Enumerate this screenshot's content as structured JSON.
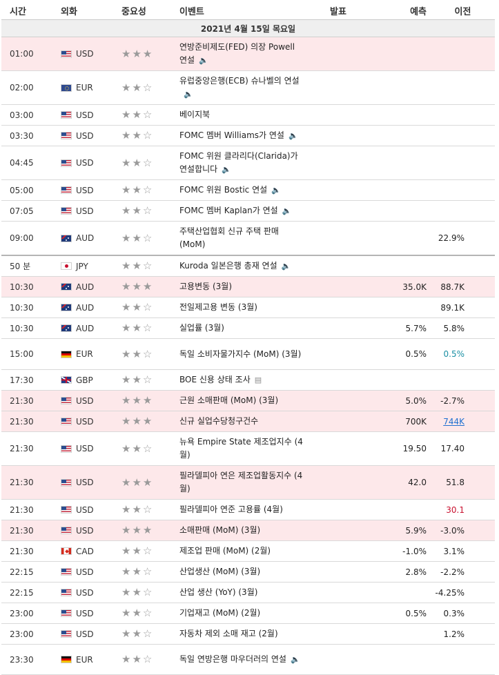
{
  "headers": {
    "time": "시간",
    "currency": "외화",
    "importance": "중요성",
    "event": "이벤트",
    "actual": "발표",
    "forecast": "예측",
    "previous": "이전"
  },
  "date_label": "2021년 4월 15일 목요일",
  "icons": {
    "speaker": "speaker-icon",
    "document": "document-icon",
    "star": "star-icon"
  },
  "colors": {
    "highlight_row": "#fde8ea",
    "teal_value": "#1a8fa3",
    "link_value": "#1e6fd0",
    "red_value": "#c8102e"
  },
  "rows": [
    {
      "time": "01:00",
      "flag": "us",
      "currency": "USD",
      "stars": 3,
      "event": "연방준비제도(FED) 의장 Powell 연설",
      "icon": "speaker",
      "actual": "",
      "forecast": "",
      "previous": "",
      "highlight": true
    },
    {
      "time": "02:00",
      "flag": "eu",
      "currency": "EUR",
      "stars": 2,
      "event": "유럽중앙은행(ECB) 슈나벨의 연설",
      "icon": "speaker",
      "actual": "",
      "forecast": "",
      "previous": "",
      "highlight": false
    },
    {
      "time": "03:00",
      "flag": "us",
      "currency": "USD",
      "stars": 2,
      "event": "베이지북",
      "icon": "",
      "actual": "",
      "forecast": "",
      "previous": "",
      "highlight": false
    },
    {
      "time": "03:30",
      "flag": "us",
      "currency": "USD",
      "stars": 2,
      "event": "FOMC 멤버 Williams가 연설",
      "icon": "speaker",
      "actual": "",
      "forecast": "",
      "previous": "",
      "highlight": false
    },
    {
      "time": "04:45",
      "flag": "us",
      "currency": "USD",
      "stars": 2,
      "event": "FOMC 위원 클라리다(Clarida)가 연설합니다",
      "icon": "speaker",
      "actual": "",
      "forecast": "",
      "previous": "",
      "highlight": false
    },
    {
      "time": "05:00",
      "flag": "us",
      "currency": "USD",
      "stars": 2,
      "event": "FOMC 위원 Bostic 연설",
      "icon": "speaker",
      "actual": "",
      "forecast": "",
      "previous": "",
      "highlight": false
    },
    {
      "time": "07:05",
      "flag": "us",
      "currency": "USD",
      "stars": 2,
      "event": "FOMC 멤버 Kaplan가 연설",
      "icon": "speaker",
      "actual": "",
      "forecast": "",
      "previous": "",
      "highlight": false
    },
    {
      "time": "09:00",
      "flag": "au",
      "currency": "AUD",
      "stars": 2,
      "event": "주택산업협회 신규 주택 판매 (MoM)",
      "icon": "",
      "actual": "",
      "forecast": "",
      "previous": "22.9%",
      "highlight": false
    },
    {
      "time": "50 분",
      "flag": "jp",
      "currency": "JPY",
      "stars": 2,
      "event": "Kuroda 일본은행 총재 연설",
      "icon": "speaker",
      "actual": "",
      "forecast": "",
      "previous": "",
      "highlight": false,
      "separator": true
    },
    {
      "time": "10:30",
      "flag": "au",
      "currency": "AUD",
      "stars": 3,
      "event": "고용변동 (3월)",
      "icon": "",
      "actual": "",
      "forecast": "35.0K",
      "previous": "88.7K",
      "highlight": true
    },
    {
      "time": "10:30",
      "flag": "au",
      "currency": "AUD",
      "stars": 2,
      "event": "전일제고용 변동 (3월)",
      "icon": "",
      "actual": "",
      "forecast": "",
      "previous": "89.1K",
      "highlight": false
    },
    {
      "time": "10:30",
      "flag": "au",
      "currency": "AUD",
      "stars": 2,
      "event": "실업률 (3월)",
      "icon": "",
      "actual": "",
      "forecast": "5.7%",
      "previous": "5.8%",
      "highlight": false
    },
    {
      "time": "15:00",
      "flag": "de",
      "currency": "EUR",
      "stars": 2,
      "event": "독일 소비자물가지수 (MoM) (3월)",
      "icon": "",
      "actual": "",
      "forecast": "0.5%",
      "previous": "0.5%",
      "prev_style": "teal",
      "highlight": false
    },
    {
      "time": "17:30",
      "flag": "gb",
      "currency": "GBP",
      "stars": 2,
      "event": "BOE 신용 상태 조사",
      "icon": "document",
      "actual": "",
      "forecast": "",
      "previous": "",
      "highlight": false
    },
    {
      "time": "21:30",
      "flag": "us",
      "currency": "USD",
      "stars": 3,
      "event": "근원 소매판매 (MoM) (3월)",
      "icon": "",
      "actual": "",
      "forecast": "5.0%",
      "previous": "-2.7%",
      "highlight": true
    },
    {
      "time": "21:30",
      "flag": "us",
      "currency": "USD",
      "stars": 3,
      "event": "신규 실업수당청구건수",
      "icon": "",
      "actual": "",
      "forecast": "700K",
      "previous": "744K",
      "prev_style": "link",
      "highlight": true
    },
    {
      "time": "21:30",
      "flag": "us",
      "currency": "USD",
      "stars": 2,
      "event": "뉴욕 Empire State 제조업지수 (4월)",
      "icon": "",
      "actual": "",
      "forecast": "19.50",
      "previous": "17.40",
      "highlight": false
    },
    {
      "time": "21:30",
      "flag": "us",
      "currency": "USD",
      "stars": 3,
      "event": "필라델피아 연은 제조업활동지수 (4월)",
      "icon": "",
      "actual": "",
      "forecast": "42.0",
      "previous": "51.8",
      "highlight": true
    },
    {
      "time": "21:30",
      "flag": "us",
      "currency": "USD",
      "stars": 2,
      "event": "필라델피아 연준 고용률 (4월)",
      "icon": "",
      "actual": "",
      "forecast": "",
      "previous": "30.1",
      "prev_style": "red",
      "highlight": false
    },
    {
      "time": "21:30",
      "flag": "us",
      "currency": "USD",
      "stars": 3,
      "event": "소매판매 (MoM) (3월)",
      "icon": "",
      "actual": "",
      "forecast": "5.9%",
      "previous": "-3.0%",
      "highlight": true
    },
    {
      "time": "21:30",
      "flag": "ca",
      "currency": "CAD",
      "stars": 2,
      "event": "제조업 판매 (MoM) (2월)",
      "icon": "",
      "actual": "",
      "forecast": "-1.0%",
      "previous": "3.1%",
      "highlight": false
    },
    {
      "time": "22:15",
      "flag": "us",
      "currency": "USD",
      "stars": 2,
      "event": "산업생산 (MoM) (3월)",
      "icon": "",
      "actual": "",
      "forecast": "2.8%",
      "previous": "-2.2%",
      "highlight": false
    },
    {
      "time": "22:15",
      "flag": "us",
      "currency": "USD",
      "stars": 2,
      "event": "산업 생산 (YoY) (3월)",
      "icon": "",
      "actual": "",
      "forecast": "",
      "previous": "-4.25%",
      "highlight": false
    },
    {
      "time": "23:00",
      "flag": "us",
      "currency": "USD",
      "stars": 2,
      "event": "기업재고 (MoM) (2월)",
      "icon": "",
      "actual": "",
      "forecast": "0.5%",
      "previous": "0.3%",
      "highlight": false
    },
    {
      "time": "23:00",
      "flag": "us",
      "currency": "USD",
      "stars": 2,
      "event": "자동차 제외 소매 재고 (2월)",
      "icon": "",
      "actual": "",
      "forecast": "",
      "previous": "1.2%",
      "highlight": false
    },
    {
      "time": "23:30",
      "flag": "de",
      "currency": "EUR",
      "stars": 2,
      "event": "독일 연방은행 마우더러의 연설",
      "icon": "speaker",
      "actual": "",
      "forecast": "",
      "previous": "",
      "highlight": false
    }
  ]
}
